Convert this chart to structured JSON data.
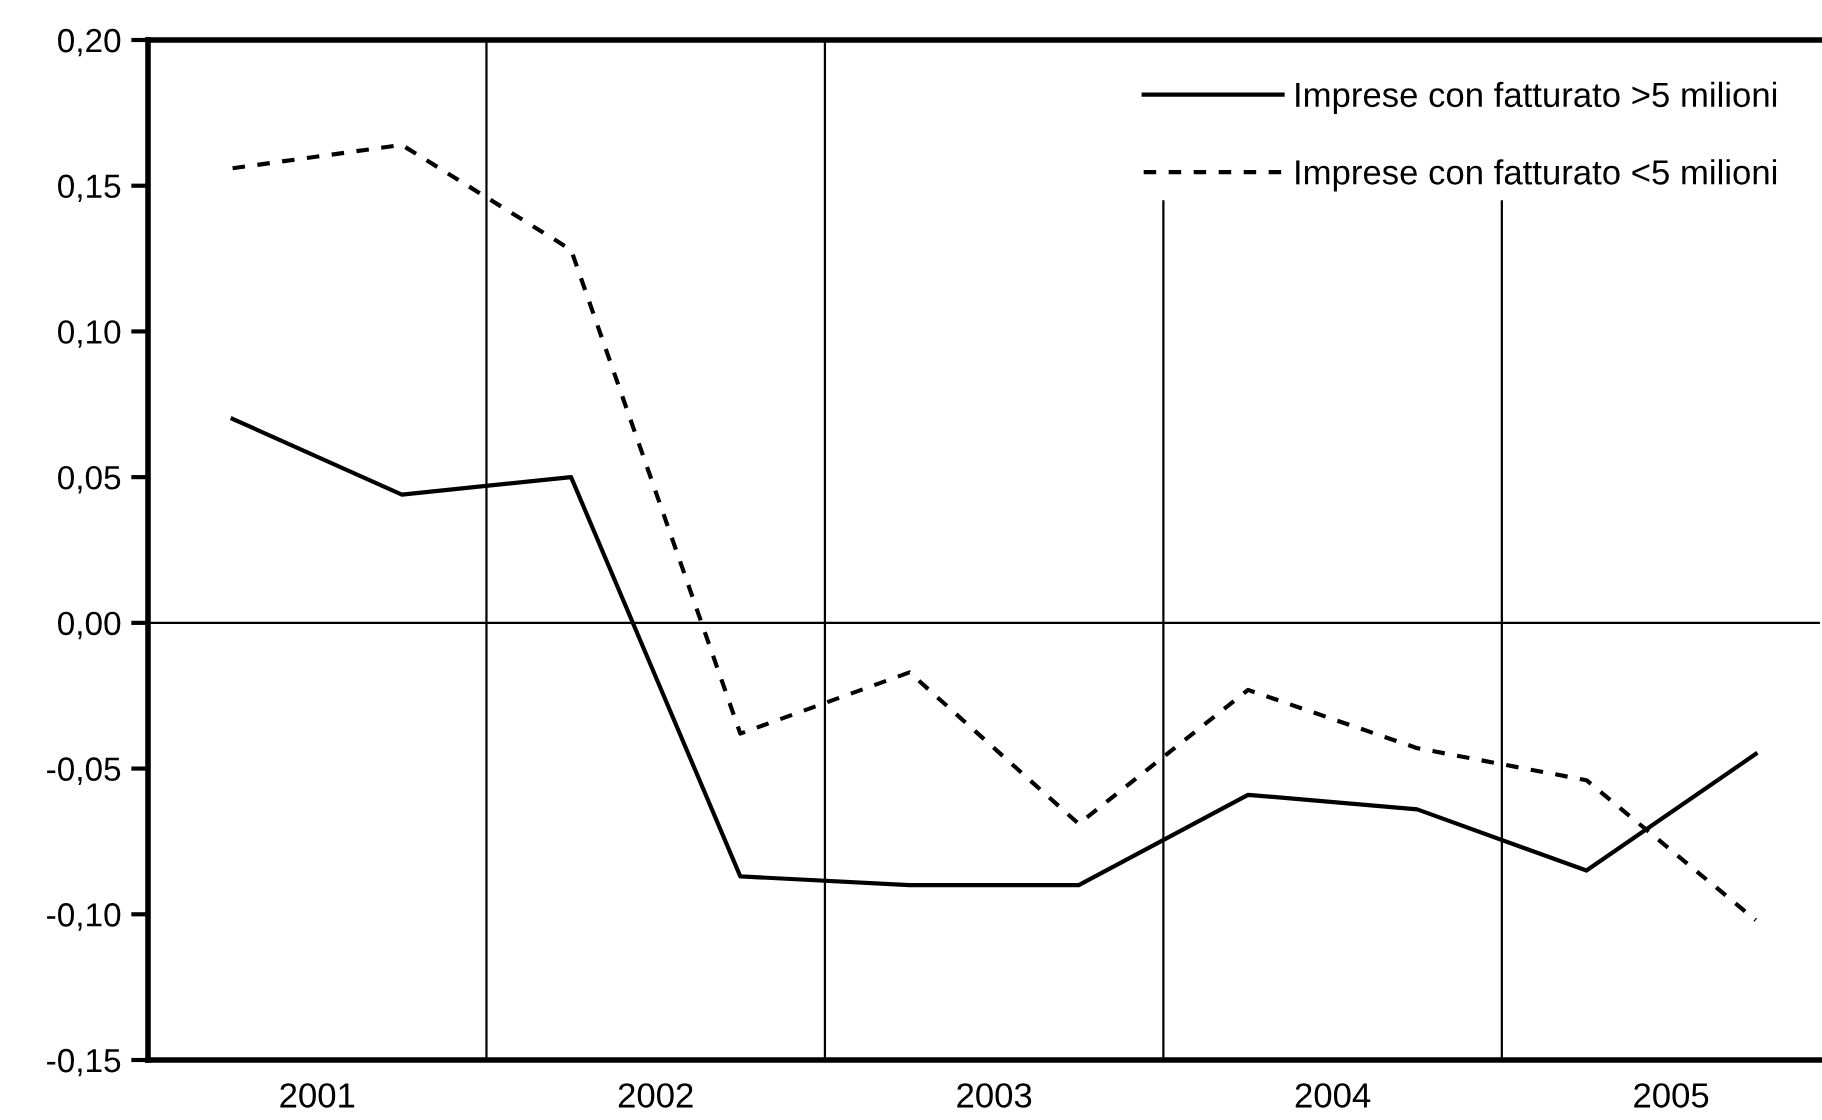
{
  "chart_data": {
    "type": "line",
    "x": [
      2001.25,
      2001.75,
      2002.25,
      2002.75,
      2003.25,
      2003.75,
      2004.25,
      2004.75,
      2005.25,
      2005.75
    ],
    "series": [
      {
        "name": "Imprese con fatturato >5 milioni",
        "color": "#000000",
        "line_style": "solid",
        "values": [
          0.07,
          0.044,
          0.05,
          -0.087,
          -0.09,
          -0.09,
          -0.059,
          -0.064,
          -0.085,
          -0.045
        ]
      },
      {
        "name": "Imprese con fatturato <5 milioni",
        "color": "#000000",
        "line_style": "dashed",
        "values": [
          0.156,
          0.164,
          0.128,
          -0.038,
          -0.017,
          -0.069,
          -0.023,
          -0.043,
          -0.054,
          -0.102
        ]
      }
    ],
    "xlim": [
      2001,
      2005.94
    ],
    "xticks": [
      {
        "value": 2001.5,
        "label": "2001"
      },
      {
        "value": 2002.5,
        "label": "2002"
      },
      {
        "value": 2003.5,
        "label": "2003"
      },
      {
        "value": 2004.5,
        "label": "2004"
      },
      {
        "value": 2005.5,
        "label": "2005"
      }
    ],
    "ylim": [
      -0.15,
      0.2
    ],
    "yticks": [
      {
        "value": -0.15,
        "label": "-0,15"
      },
      {
        "value": -0.1,
        "label": "-0,10"
      },
      {
        "value": -0.05,
        "label": "-0,05"
      },
      {
        "value": 0,
        "label": "0,00"
      },
      {
        "value": 0.05,
        "label": "0,05"
      },
      {
        "value": 0.1,
        "label": "0,10"
      },
      {
        "value": 0.15,
        "label": "0,15"
      },
      {
        "value": 0.2,
        "label": "0,20"
      }
    ],
    "ref_lines": [
      {
        "axis": "x",
        "value": 2002,
        "color": "#000000"
      },
      {
        "axis": "x",
        "value": 2003,
        "color": "#000000"
      },
      {
        "axis": "x",
        "value": 2004,
        "color": "#000000"
      },
      {
        "axis": "x",
        "value": 2005,
        "color": "#000000"
      },
      {
        "axis": "y",
        "value": 0,
        "color": "#000000"
      }
    ],
    "grid": false,
    "legend": "top right",
    "marker": "none"
  }
}
